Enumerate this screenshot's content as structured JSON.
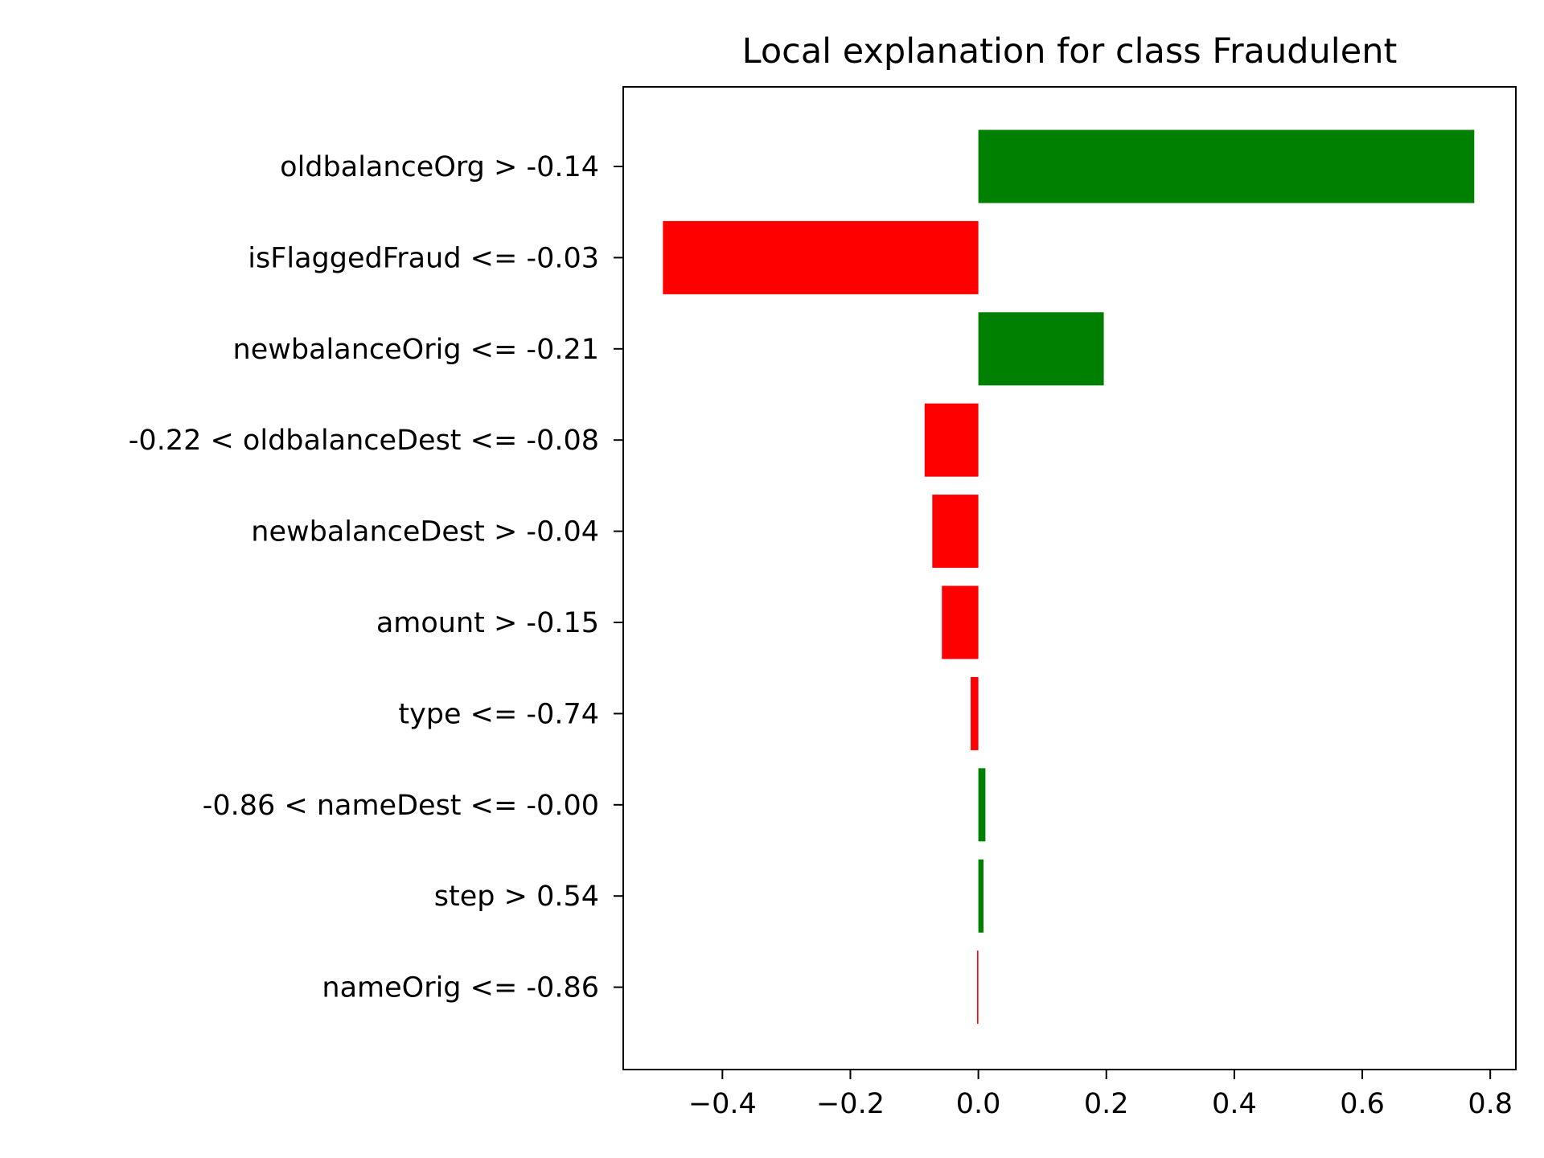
{
  "chart_data": {
    "type": "bar",
    "orientation": "horizontal",
    "title": "Local explanation for class Fraudulent",
    "xlabel": "",
    "ylabel": "",
    "categories": [
      "oldbalanceOrg > -0.14",
      "isFlaggedFraud <= -0.03",
      "newbalanceOrig <= -0.21",
      "-0.22 < oldbalanceDest <= -0.08",
      "newbalanceDest > -0.04",
      "amount > -0.15",
      "type <= -0.74",
      "-0.86 < nameDest <= -0.00",
      "step > 0.54",
      "nameOrig <= -0.86"
    ],
    "values": [
      0.775,
      -0.493,
      0.196,
      -0.084,
      -0.072,
      -0.057,
      -0.012,
      0.011,
      0.008,
      -0.002
    ],
    "xlim": [
      -0.555,
      0.84
    ],
    "xticks": [
      -0.4,
      -0.2,
      0.0,
      0.2,
      0.4,
      0.6,
      0.8
    ],
    "xtick_labels": [
      "−0.4",
      "−0.2",
      "0.0",
      "0.2",
      "0.4",
      "0.6",
      "0.8"
    ],
    "colors": {
      "positive": "#008000",
      "negative": "#ff0000"
    },
    "grid": false,
    "legend": "none"
  }
}
